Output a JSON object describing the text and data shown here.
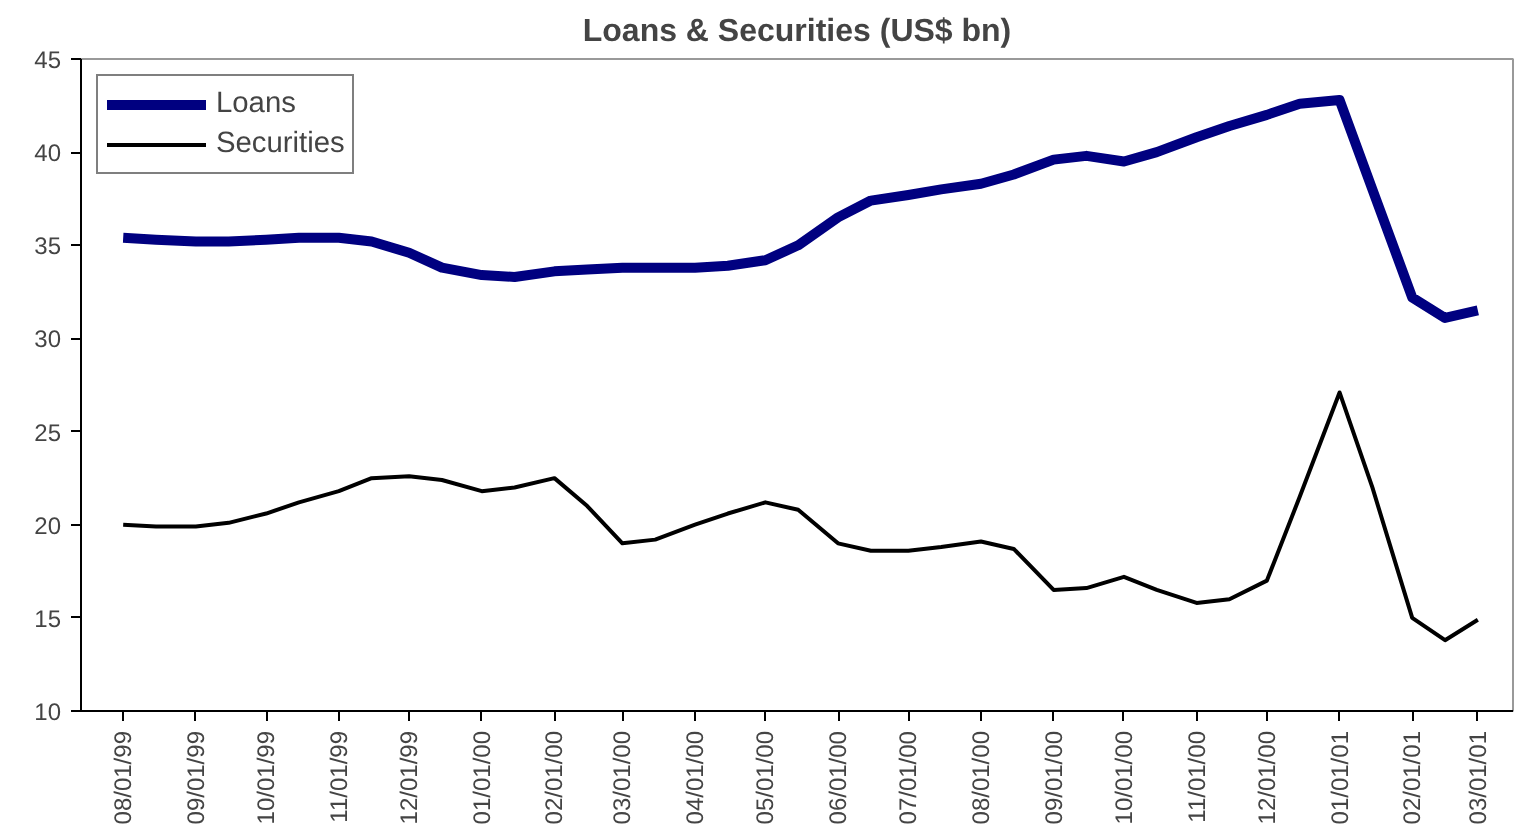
{
  "chart_data": {
    "type": "line",
    "title": "Loans & Securities (US$ bn)",
    "x": [
      "1999-08-01",
      "1999-08-15",
      "1999-09-01",
      "1999-09-15",
      "1999-10-01",
      "1999-10-15",
      "1999-11-01",
      "1999-11-15",
      "1999-12-01",
      "1999-12-15",
      "2000-01-01",
      "2000-01-15",
      "2000-02-01",
      "2000-02-15",
      "2000-03-01",
      "2000-03-15",
      "2000-04-01",
      "2000-04-15",
      "2000-05-01",
      "2000-05-15",
      "2000-06-01",
      "2000-06-15",
      "2000-07-01",
      "2000-07-15",
      "2000-08-01",
      "2000-08-15",
      "2000-09-01",
      "2000-09-15",
      "2000-10-01",
      "2000-10-15",
      "2000-11-01",
      "2000-11-15",
      "2000-12-01",
      "2000-12-15",
      "2001-01-01",
      "2001-01-15",
      "2001-02-01",
      "2001-02-15",
      "2001-03-01"
    ],
    "series": [
      {
        "name": "Loans",
        "color": "#000080",
        "values": [
          35.4,
          35.3,
          35.2,
          35.2,
          35.3,
          35.4,
          35.4,
          35.2,
          34.6,
          33.8,
          33.4,
          33.3,
          33.6,
          33.7,
          33.8,
          33.8,
          33.8,
          33.9,
          34.2,
          35.0,
          36.5,
          37.4,
          37.7,
          38.0,
          38.3,
          38.8,
          39.6,
          39.8,
          39.5,
          40.0,
          40.8,
          41.4,
          42.0,
          42.6,
          42.8,
          38.0,
          32.2,
          31.1,
          31.5
        ]
      },
      {
        "name": "Securities",
        "color": "#000000",
        "values": [
          20.0,
          19.9,
          19.9,
          20.1,
          20.6,
          21.2,
          21.8,
          22.5,
          22.6,
          22.4,
          21.8,
          22.0,
          22.5,
          21.0,
          19.0,
          19.2,
          20.0,
          20.6,
          21.2,
          20.8,
          19.0,
          18.6,
          18.6,
          18.8,
          19.1,
          18.7,
          16.5,
          16.6,
          17.2,
          16.5,
          15.8,
          16.0,
          17.0,
          21.5,
          27.1,
          22.0,
          15.0,
          13.8,
          14.9
        ]
      }
    ],
    "xlim": [
      "1999-07-14",
      "2001-03-16"
    ],
    "xticks": [
      {
        "value": "1999-08-01",
        "label": "08/01/99"
      },
      {
        "value": "1999-09-01",
        "label": "09/01/99"
      },
      {
        "value": "1999-10-01",
        "label": "10/01/99"
      },
      {
        "value": "1999-11-01",
        "label": "11/01/99"
      },
      {
        "value": "1999-12-01",
        "label": "12/01/99"
      },
      {
        "value": "2000-01-01",
        "label": "01/01/00"
      },
      {
        "value": "2000-02-01",
        "label": "02/01/00"
      },
      {
        "value": "2000-03-01",
        "label": "03/01/00"
      },
      {
        "value": "2000-04-01",
        "label": "04/01/00"
      },
      {
        "value": "2000-05-01",
        "label": "05/01/00"
      },
      {
        "value": "2000-06-01",
        "label": "06/01/00"
      },
      {
        "value": "2000-07-01",
        "label": "07/01/00"
      },
      {
        "value": "2000-08-01",
        "label": "08/01/00"
      },
      {
        "value": "2000-09-01",
        "label": "09/01/00"
      },
      {
        "value": "2000-10-01",
        "label": "10/01/00"
      },
      {
        "value": "2000-11-01",
        "label": "11/01/00"
      },
      {
        "value": "2000-12-01",
        "label": "12/01/00"
      },
      {
        "value": "2001-01-01",
        "label": "01/01/01"
      },
      {
        "value": "2001-02-01",
        "label": "02/01/01"
      },
      {
        "value": "2001-03-01",
        "label": "03/01/01"
      }
    ],
    "ylim": [
      10,
      45
    ],
    "yticks": [
      10,
      15,
      20,
      25,
      30,
      35,
      40,
      45
    ],
    "grid": false,
    "legend": "top left",
    "marker": "none",
    "line_style": "solid"
  }
}
